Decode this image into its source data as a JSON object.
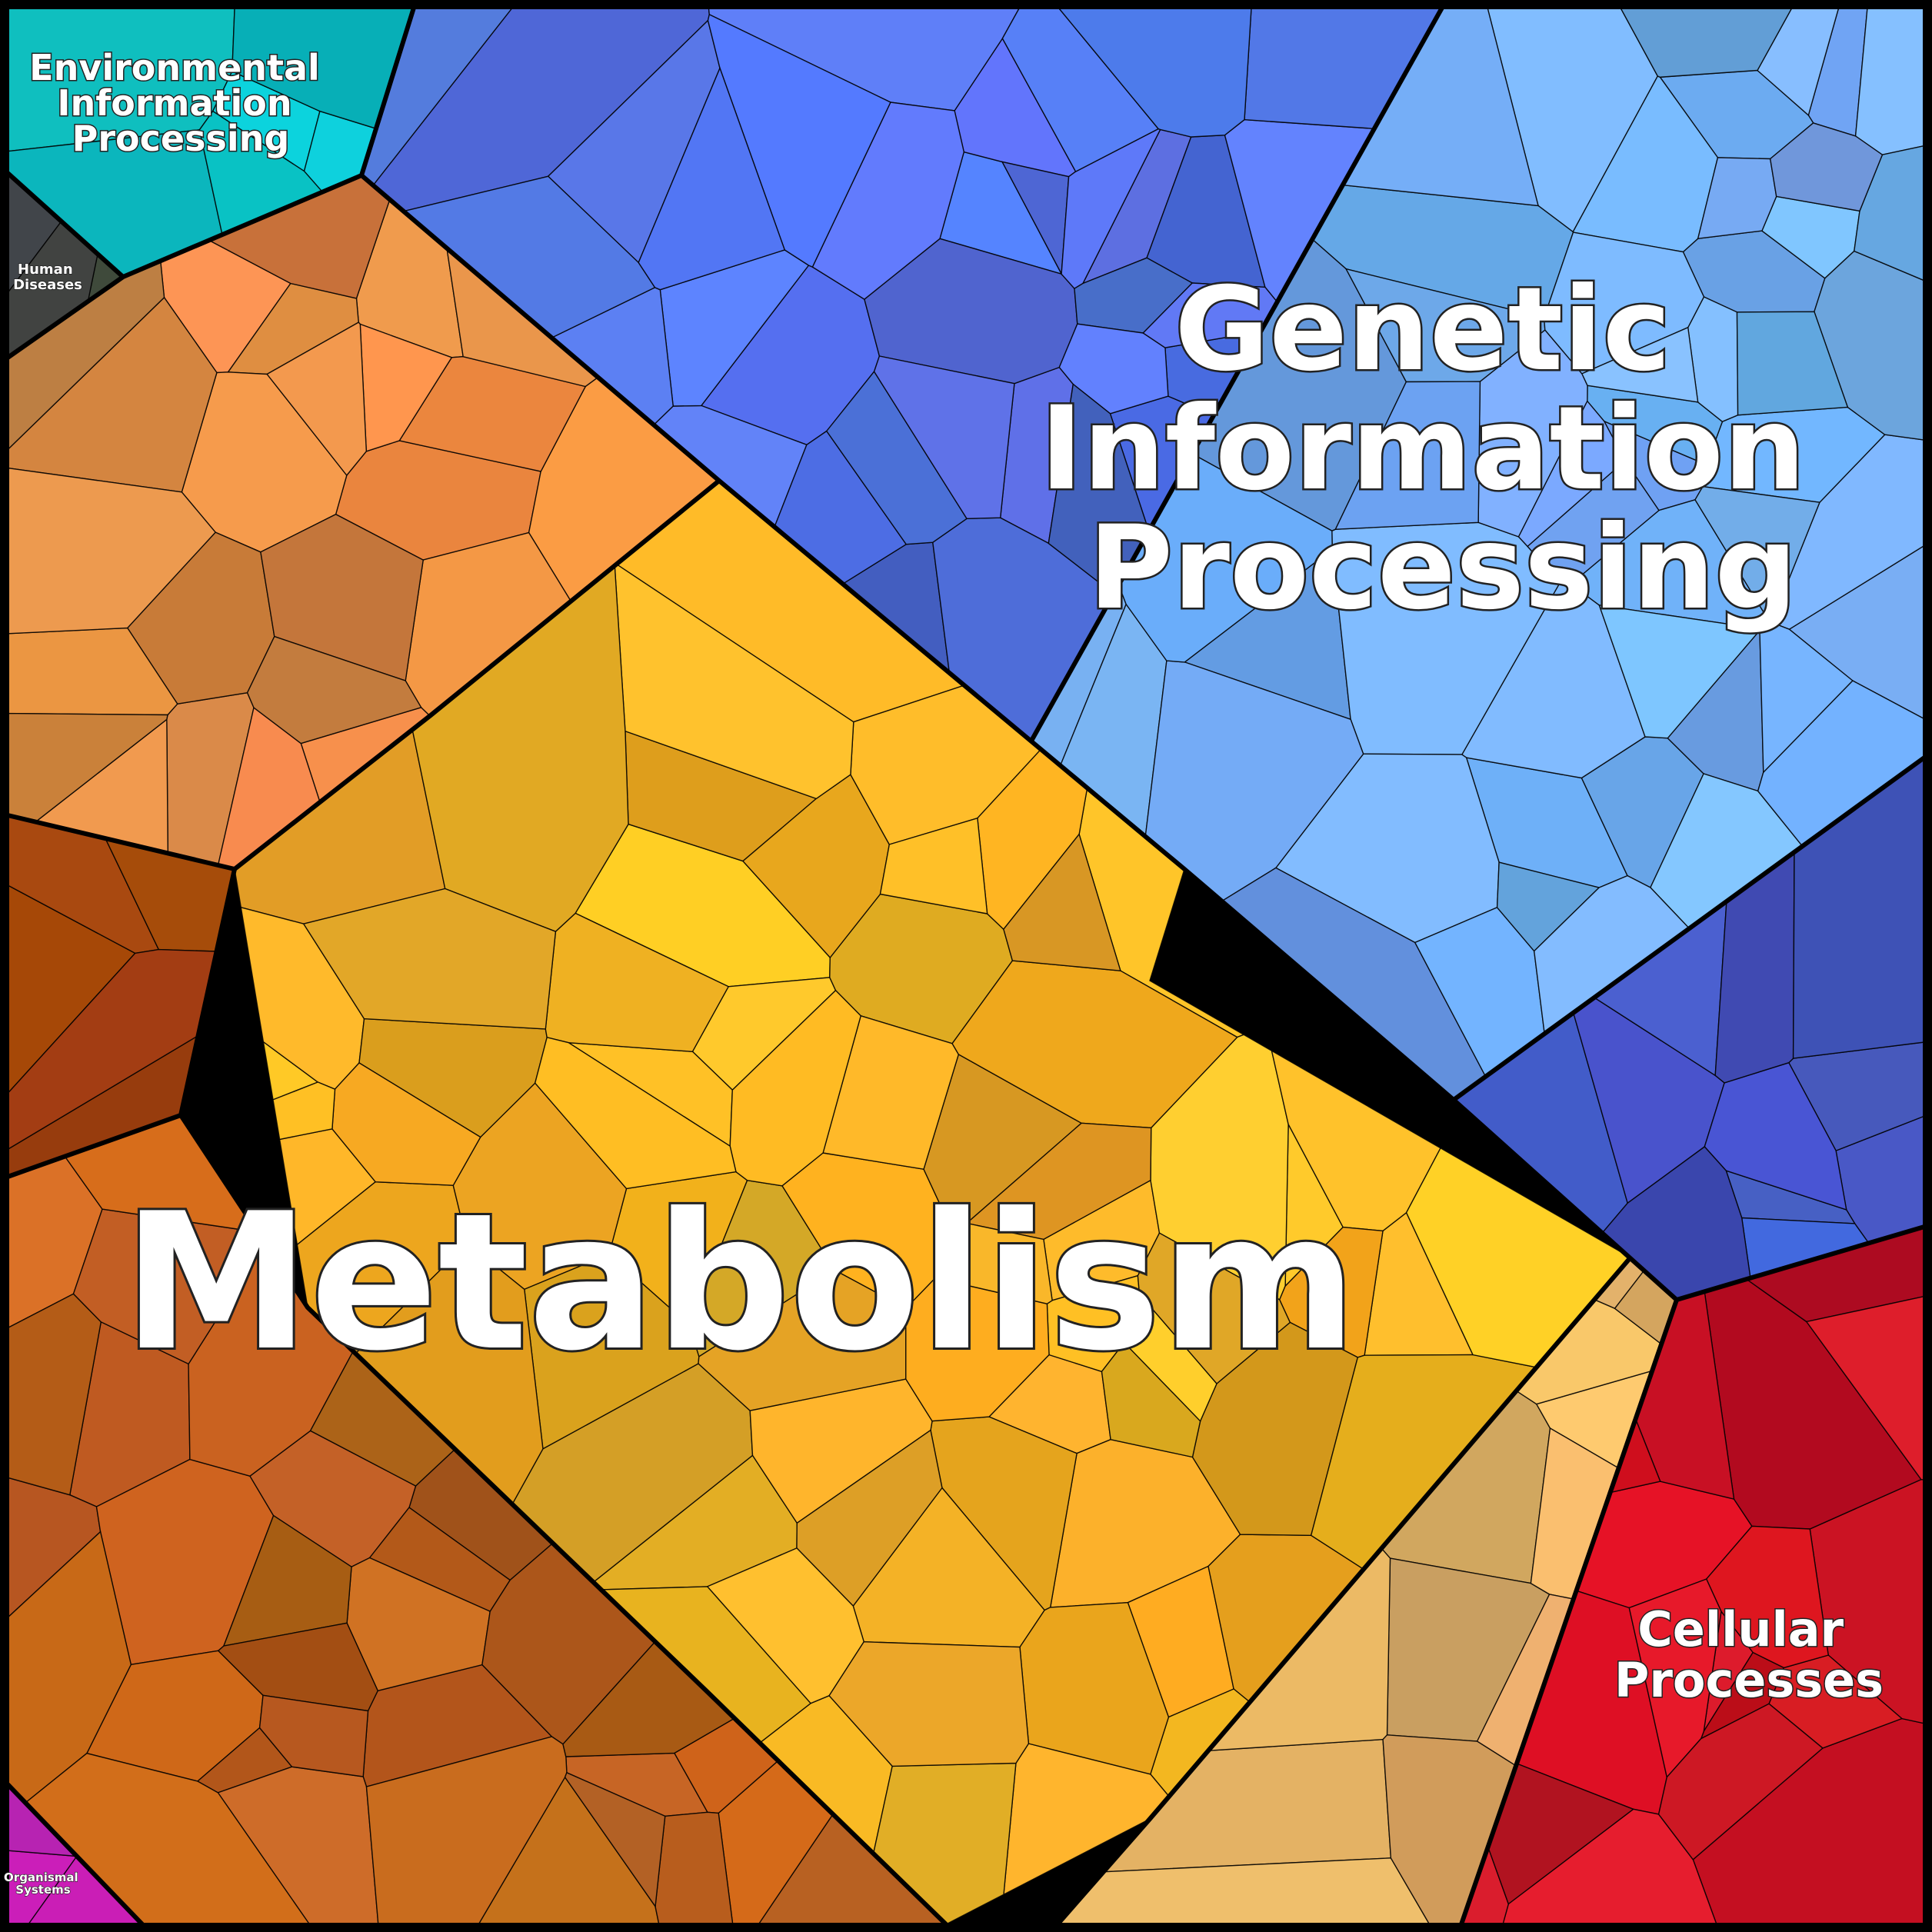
{
  "diagram": {
    "type": "voronoi-treemap",
    "categories": [
      {
        "id": "environmental",
        "name_lines": [
          "Environmental",
          "Information",
          "Processing"
        ],
        "color": "#0fc6d2"
      },
      {
        "id": "human-diseases",
        "name_lines": [
          "Human",
          "Diseases"
        ],
        "color": "#444444"
      },
      {
        "id": "genetic",
        "name_lines": [
          "Genetic",
          "Information",
          "Processing"
        ],
        "color": "#6a9cf0"
      },
      {
        "id": "metabolism",
        "name_lines": [
          "Metabolism"
        ],
        "color": "#f6b21f"
      },
      {
        "id": "cellular",
        "name_lines": [
          "Cellular",
          "Processes"
        ],
        "color": "#d21a2a"
      },
      {
        "id": "organismal",
        "name_lines": [
          "Organismal",
          "Systems"
        ],
        "color": "#c026b8"
      }
    ]
  },
  "labels": {
    "environmental": [
      "Environmental",
      "Information",
      "Processing"
    ],
    "human_diseases": [
      "Human",
      "Diseases"
    ],
    "genetic": [
      "Genetic",
      "Information",
      "Processing"
    ],
    "metabolism": "Metabolism",
    "cellular": [
      "Cellular",
      "Processes"
    ],
    "organismal": [
      "Organismal",
      "Systems"
    ]
  }
}
